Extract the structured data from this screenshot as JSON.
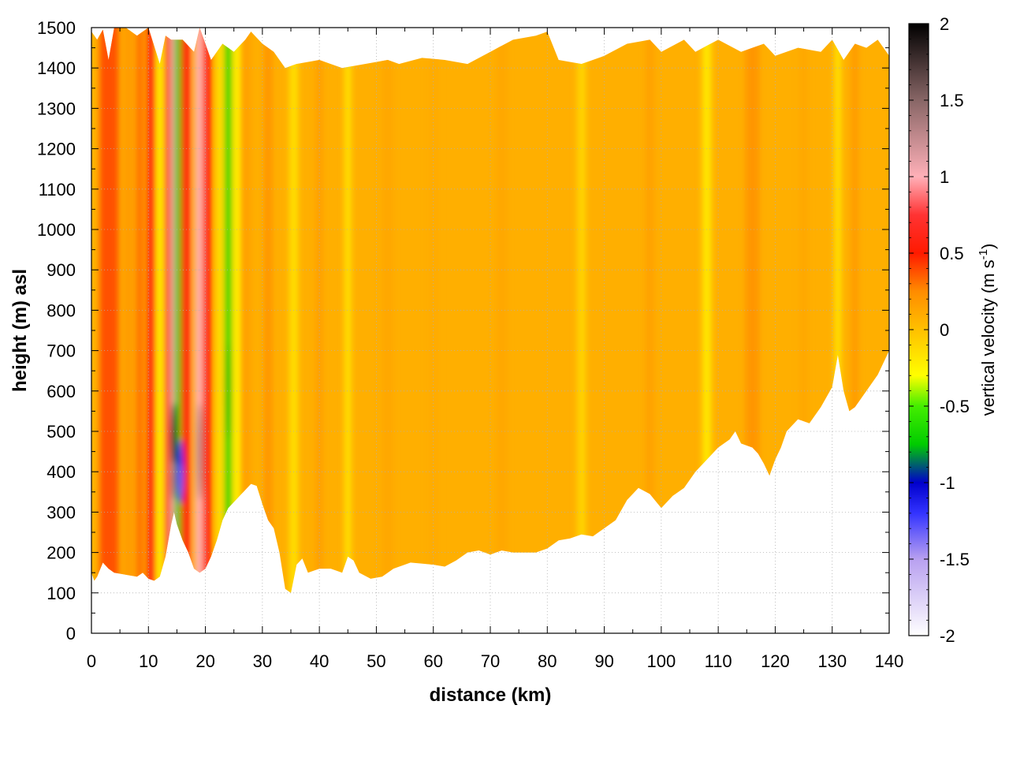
{
  "chart_data": {
    "type": "heatmap",
    "title": "",
    "xlabel": "distance (km)",
    "ylabel": "height (m) asl",
    "xlim": [
      0,
      140
    ],
    "ylim": [
      0,
      1500
    ],
    "x_ticks": [
      0,
      10,
      20,
      30,
      40,
      50,
      60,
      70,
      80,
      90,
      100,
      110,
      120,
      130,
      140
    ],
    "y_ticks": [
      0,
      100,
      200,
      300,
      400,
      500,
      600,
      700,
      800,
      900,
      1000,
      1100,
      1200,
      1300,
      1400,
      1500
    ],
    "x_tick_labels": [
      "0",
      "10",
      "20",
      "30",
      "40",
      "50",
      "60",
      "70",
      "80",
      "90",
      "100",
      "110",
      "120",
      "130",
      "140"
    ],
    "y_tick_labels": [
      "0",
      "100",
      "200",
      "300",
      "400",
      "500",
      "600",
      "700",
      "800",
      "900",
      "1000",
      "1100",
      "1200",
      "1300",
      "1400",
      "1500"
    ],
    "grid": true,
    "colorbar": {
      "label_main": "vertical velocity (m s",
      "label_sup": "-1",
      "label_close": ")",
      "range": [
        -2,
        2
      ],
      "ticks": [
        -2,
        -1.5,
        -1,
        -0.5,
        0,
        0.5,
        1,
        1.5,
        2
      ],
      "tick_labels": [
        "-2",
        "-1.5",
        "-1",
        "-0.5",
        "0",
        "0.5",
        "1",
        "1.5",
        "2"
      ],
      "palette": [
        {
          "v": -2.0,
          "color": "#ffffff"
        },
        {
          "v": -1.5,
          "color": "#b8a0f0"
        },
        {
          "v": -1.2,
          "color": "#3333ff"
        },
        {
          "v": -1.0,
          "color": "#0000cc"
        },
        {
          "v": -0.75,
          "color": "#00cc00"
        },
        {
          "v": -0.5,
          "color": "#44ee00"
        },
        {
          "v": -0.3,
          "color": "#ffff00"
        },
        {
          "v": 0.0,
          "color": "#ffc000"
        },
        {
          "v": 0.25,
          "color": "#ff8c00"
        },
        {
          "v": 0.5,
          "color": "#ff1a00"
        },
        {
          "v": 0.75,
          "color": "#ff3333"
        },
        {
          "v": 1.0,
          "color": "#ffb0b8"
        },
        {
          "v": 1.5,
          "color": "#886666"
        },
        {
          "v": 2.0,
          "color": "#000000"
        }
      ]
    },
    "data_top_boundary": [
      [
        0,
        1490
      ],
      [
        1,
        1470
      ],
      [
        2,
        1495
      ],
      [
        3,
        1420
      ],
      [
        4,
        1500
      ],
      [
        6,
        1500
      ],
      [
        8,
        1480
      ],
      [
        10,
        1500
      ],
      [
        12,
        1410
      ],
      [
        13,
        1480
      ],
      [
        14,
        1470
      ],
      [
        16,
        1470
      ],
      [
        18,
        1440
      ],
      [
        19,
        1500
      ],
      [
        21,
        1420
      ],
      [
        23,
        1460
      ],
      [
        25,
        1440
      ],
      [
        27,
        1470
      ],
      [
        28,
        1490
      ],
      [
        30,
        1460
      ],
      [
        32,
        1440
      ],
      [
        34,
        1400
      ],
      [
        36,
        1410
      ],
      [
        40,
        1420
      ],
      [
        44,
        1400
      ],
      [
        48,
        1410
      ],
      [
        52,
        1420
      ],
      [
        54,
        1410
      ],
      [
        58,
        1425
      ],
      [
        62,
        1420
      ],
      [
        66,
        1410
      ],
      [
        70,
        1440
      ],
      [
        74,
        1470
      ],
      [
        78,
        1480
      ],
      [
        80,
        1490
      ],
      [
        82,
        1420
      ],
      [
        86,
        1410
      ],
      [
        90,
        1430
      ],
      [
        94,
        1460
      ],
      [
        98,
        1470
      ],
      [
        100,
        1440
      ],
      [
        104,
        1470
      ],
      [
        106,
        1440
      ],
      [
        110,
        1470
      ],
      [
        114,
        1440
      ],
      [
        118,
        1460
      ],
      [
        120,
        1430
      ],
      [
        124,
        1450
      ],
      [
        128,
        1440
      ],
      [
        130,
        1470
      ],
      [
        132,
        1420
      ],
      [
        134,
        1460
      ],
      [
        136,
        1450
      ],
      [
        138,
        1470
      ],
      [
        140,
        1430
      ]
    ],
    "data_bottom_boundary": [
      [
        0,
        150
      ],
      [
        0.5,
        130
      ],
      [
        1,
        140
      ],
      [
        2,
        175
      ],
      [
        3,
        160
      ],
      [
        4,
        150
      ],
      [
        6,
        145
      ],
      [
        8,
        140
      ],
      [
        9,
        150
      ],
      [
        10,
        135
      ],
      [
        11,
        130
      ],
      [
        12,
        140
      ],
      [
        13,
        190
      ],
      [
        14,
        270
      ],
      [
        14.5,
        300
      ],
      [
        15,
        270
      ],
      [
        16,
        230
      ],
      [
        17,
        200
      ],
      [
        18,
        160
      ],
      [
        19,
        150
      ],
      [
        20,
        160
      ],
      [
        21,
        190
      ],
      [
        22,
        230
      ],
      [
        23,
        280
      ],
      [
        24,
        310
      ],
      [
        26,
        340
      ],
      [
        28,
        370
      ],
      [
        29,
        365
      ],
      [
        30,
        320
      ],
      [
        31,
        280
      ],
      [
        32,
        260
      ],
      [
        33,
        200
      ],
      [
        34,
        110
      ],
      [
        35,
        100
      ],
      [
        36,
        170
      ],
      [
        37,
        185
      ],
      [
        38,
        150
      ],
      [
        40,
        160
      ],
      [
        42,
        160
      ],
      [
        44,
        150
      ],
      [
        45,
        190
      ],
      [
        46,
        180
      ],
      [
        47,
        150
      ],
      [
        49,
        135
      ],
      [
        51,
        140
      ],
      [
        53,
        160
      ],
      [
        56,
        175
      ],
      [
        60,
        170
      ],
      [
        62,
        165
      ],
      [
        64,
        180
      ],
      [
        66,
        200
      ],
      [
        68,
        205
      ],
      [
        70,
        195
      ],
      [
        72,
        205
      ],
      [
        74,
        200
      ],
      [
        76,
        200
      ],
      [
        78,
        200
      ],
      [
        80,
        210
      ],
      [
        82,
        230
      ],
      [
        84,
        235
      ],
      [
        86,
        245
      ],
      [
        88,
        240
      ],
      [
        90,
        260
      ],
      [
        92,
        280
      ],
      [
        94,
        330
      ],
      [
        96,
        360
      ],
      [
        98,
        345
      ],
      [
        100,
        310
      ],
      [
        102,
        340
      ],
      [
        104,
        360
      ],
      [
        106,
        400
      ],
      [
        108,
        430
      ],
      [
        110,
        460
      ],
      [
        112,
        480
      ],
      [
        113,
        500
      ],
      [
        114,
        470
      ],
      [
        116,
        460
      ],
      [
        117,
        445
      ],
      [
        118,
        420
      ],
      [
        119,
        390
      ],
      [
        120,
        430
      ],
      [
        121,
        460
      ],
      [
        122,
        500
      ],
      [
        124,
        530
      ],
      [
        126,
        520
      ],
      [
        128,
        560
      ],
      [
        130,
        610
      ],
      [
        131,
        690
      ],
      [
        132,
        600
      ],
      [
        133,
        550
      ],
      [
        134,
        560
      ],
      [
        136,
        600
      ],
      [
        138,
        640
      ],
      [
        140,
        700
      ]
    ],
    "background_value": 0.08,
    "velocity_columns": [
      {
        "x": 0.5,
        "width": 1.5,
        "value": 0.05
      },
      {
        "x": 3,
        "width": 3.5,
        "value": 0.38
      },
      {
        "x": 6.5,
        "width": 1.8,
        "value": 0.18
      },
      {
        "x": 8.5,
        "width": 1.2,
        "value": 0.32
      },
      {
        "x": 10.5,
        "width": 1.3,
        "value": 0.55
      },
      {
        "x": 12,
        "width": 0.9,
        "value": -0.3
      },
      {
        "x": 13.3,
        "width": 0.8,
        "value": 0.6
      },
      {
        "x": 14.2,
        "width": 0.8,
        "value": 1.1
      },
      {
        "x": 15.3,
        "width": 1.2,
        "value": -0.75
      },
      {
        "x": 16.5,
        "width": 1.6,
        "value": 0.55
      },
      {
        "x": 18.8,
        "width": 1.3,
        "value": 1.0
      },
      {
        "x": 20.3,
        "width": 1.4,
        "value": 0.55
      },
      {
        "x": 22.5,
        "width": 1.0,
        "value": -0.2
      },
      {
        "x": 24,
        "width": 1.2,
        "value": -0.6
      },
      {
        "x": 25.5,
        "width": 1.0,
        "value": -0.3
      },
      {
        "x": 27,
        "width": 2.0,
        "value": 0.15
      },
      {
        "x": 31,
        "width": 1.5,
        "value": 0.2
      },
      {
        "x": 35.5,
        "width": 1.5,
        "value": -0.15
      },
      {
        "x": 40,
        "width": 1.0,
        "value": 0.18
      },
      {
        "x": 45,
        "width": 1.0,
        "value": -0.2
      },
      {
        "x": 52,
        "width": 2.0,
        "value": 0.12
      },
      {
        "x": 60,
        "width": 2.0,
        "value": 0.1
      },
      {
        "x": 72,
        "width": 2.0,
        "value": 0.12
      },
      {
        "x": 86,
        "width": 1.5,
        "value": -0.1
      },
      {
        "x": 98,
        "width": 1.5,
        "value": 0.15
      },
      {
        "x": 108,
        "width": 1.5,
        "value": -0.2
      },
      {
        "x": 116,
        "width": 2.5,
        "value": 0.2
      },
      {
        "x": 125,
        "width": 1.5,
        "value": 0.12
      },
      {
        "x": 131,
        "width": 1.0,
        "value": -0.2
      },
      {
        "x": 134,
        "width": 1.0,
        "value": 0.2
      }
    ],
    "velocity_blobs": [
      {
        "x": 14.5,
        "y": 480,
        "rx": 0.5,
        "ry": 90,
        "value": 1.9
      },
      {
        "x": 14.5,
        "y": 380,
        "rx": 0.4,
        "ry": 50,
        "value": 1.5
      },
      {
        "x": 15.6,
        "y": 400,
        "rx": 0.6,
        "ry": 80,
        "value": -1.1
      },
      {
        "x": 15.6,
        "y": 380,
        "rx": 0.4,
        "ry": 40,
        "value": -1.3
      },
      {
        "x": 19,
        "y": 450,
        "rx": 0.5,
        "ry": 120,
        "value": 1.3
      },
      {
        "x": 24,
        "y": 600,
        "rx": 0.5,
        "ry": 120,
        "value": -0.75
      }
    ]
  }
}
